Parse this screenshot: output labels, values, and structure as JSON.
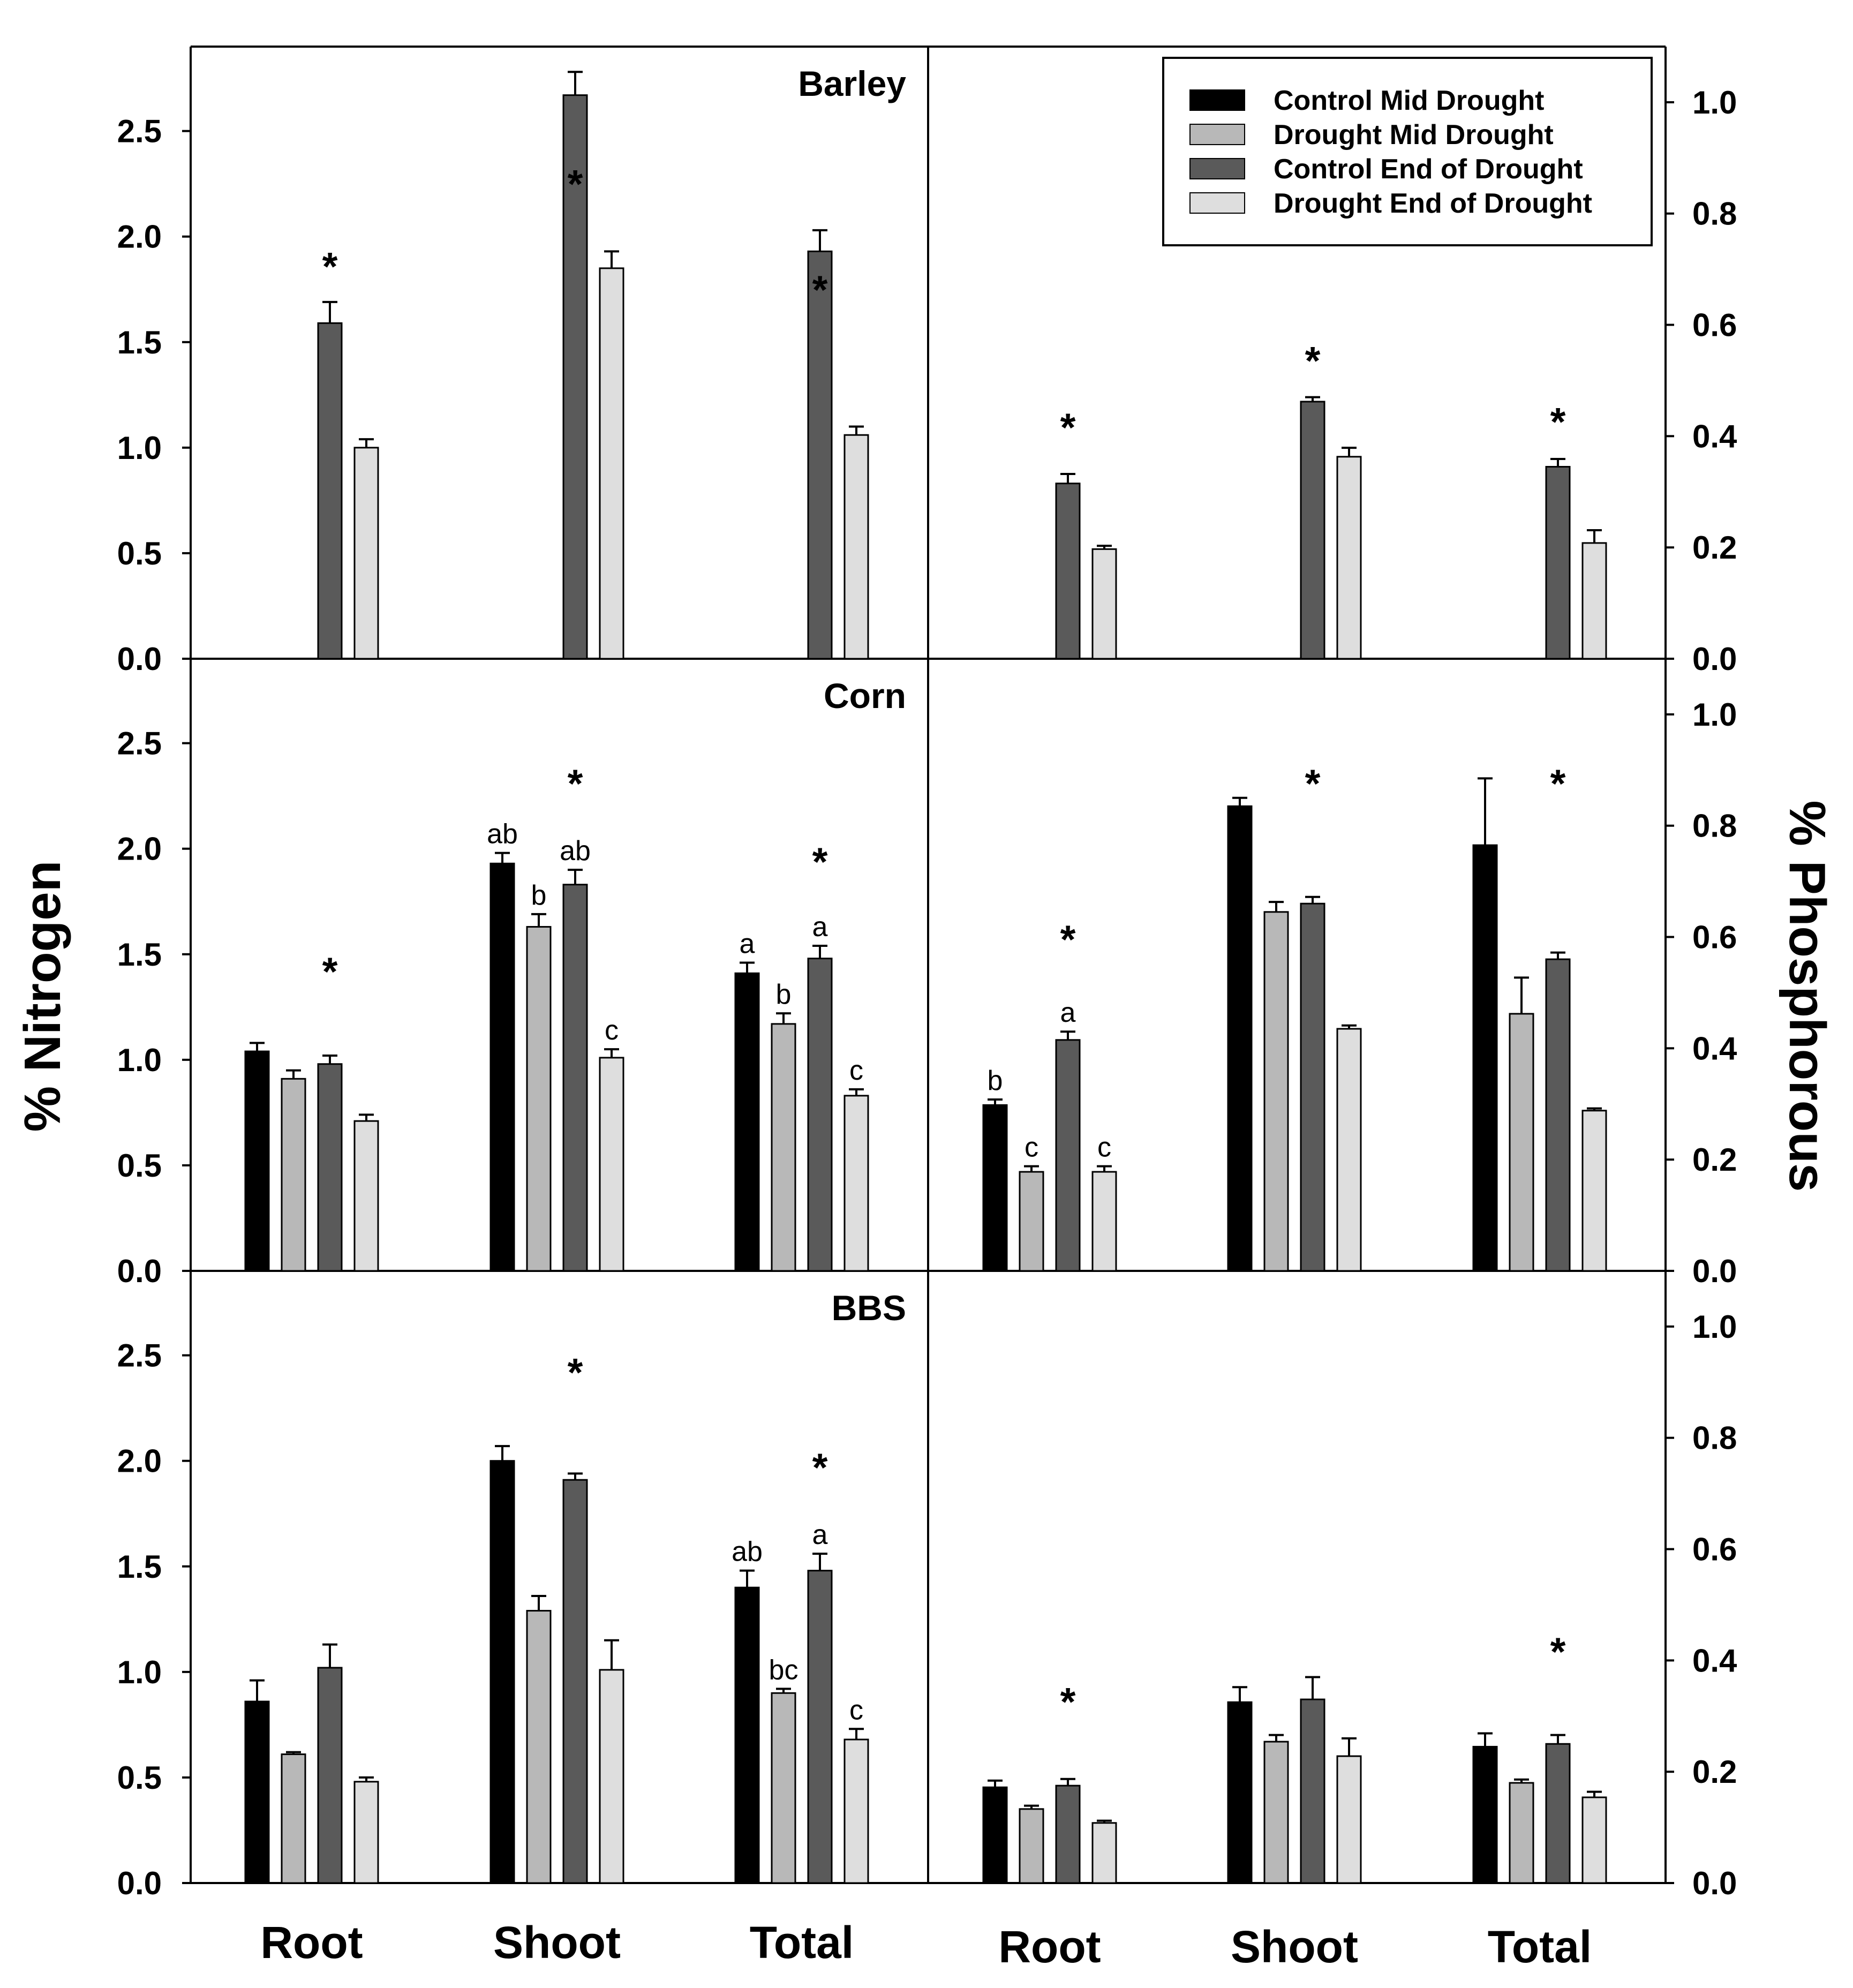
{
  "chart_data": {
    "type": "bar",
    "left_axis": {
      "label": "% Nitrogen",
      "ylim": [
        0,
        2.9
      ],
      "ticks": [
        "0.0",
        "0.5",
        "1.0",
        "1.5",
        "2.0",
        "2.5"
      ]
    },
    "right_axis": {
      "label": "% Phosphorous",
      "ylim": [
        0,
        1.1
      ],
      "ticks": [
        "0.0",
        "0.2",
        "0.4",
        "0.6",
        "0.8",
        "1.0"
      ]
    },
    "categories": [
      "Root",
      "Shoot",
      "Total"
    ],
    "legend": [
      {
        "name": "Control Mid Drought",
        "color": "#000000"
      },
      {
        "name": "Drought Mid Drought",
        "color": "#b8b8b8"
      },
      {
        "name": "Control End of Drought",
        "color": "#5a5a5a"
      },
      {
        "name": "Drought End of Drought",
        "color": "#dedede"
      }
    ],
    "rows": [
      {
        "title": "Barley",
        "nitrogen": {
          "values": [
            [
              null,
              null,
              1.59,
              1.0
            ],
            [
              null,
              null,
              2.67,
              1.85
            ],
            [
              null,
              null,
              1.93,
              1.06
            ]
          ],
          "errors": [
            [
              0,
              0,
              0.1,
              0.04
            ],
            [
              0,
              0,
              0.11,
              0.08
            ],
            [
              0,
              0,
              0.1,
              0.04
            ]
          ],
          "stars": [
            1.87,
            2.26,
            1.76
          ],
          "letters": [
            [
              "",
              "",
              "",
              ""
            ],
            [
              "",
              "",
              "",
              ""
            ],
            [
              "",
              "",
              "",
              ""
            ]
          ]
        },
        "phosphorus": {
          "values": [
            [
              null,
              null,
              0.315,
              0.197
            ],
            [
              null,
              null,
              0.462,
              0.363
            ],
            [
              null,
              null,
              0.345,
              0.208
            ]
          ],
          "errors": [
            [
              0,
              0,
              0.017,
              0.006
            ],
            [
              0,
              0,
              0.008,
              0.016
            ],
            [
              0,
              0,
              0.014,
              0.023
            ]
          ],
          "stars": [
            0.42,
            0.54,
            0.43
          ],
          "letters": [
            [
              "",
              "",
              "",
              ""
            ],
            [
              "",
              "",
              "",
              ""
            ],
            [
              "",
              "",
              "",
              ""
            ]
          ]
        }
      },
      {
        "title": "Corn",
        "nitrogen": {
          "values": [
            [
              1.04,
              0.91,
              0.98,
              0.71
            ],
            [
              1.93,
              1.63,
              1.83,
              1.01
            ],
            [
              1.41,
              1.17,
              1.48,
              0.83
            ]
          ],
          "errors": [
            [
              0.04,
              0.04,
              0.04,
              0.03
            ],
            [
              0.05,
              0.06,
              0.07,
              0.04
            ],
            [
              0.05,
              0.05,
              0.06,
              0.03
            ]
          ],
          "stars": [
            1.43,
            2.32,
            1.95
          ],
          "letters": [
            [
              "",
              "",
              "",
              ""
            ],
            [
              "ab",
              "b",
              "ab",
              "c"
            ],
            [
              "a",
              "b",
              "a",
              "c"
            ]
          ]
        },
        "phosphorus": {
          "values": [
            [
              0.298,
              0.178,
              0.415,
              0.178
            ],
            [
              0.835,
              0.645,
              0.66,
              0.435
            ],
            [
              0.765,
              0.462,
              0.56,
              0.288
            ]
          ],
          "errors": [
            [
              0.01,
              0.01,
              0.015,
              0.01
            ],
            [
              0.015,
              0.018,
              0.012,
              0.006
            ],
            [
              0.12,
              0.065,
              0.012,
              0.004
            ]
          ],
          "stars": [
            0.6,
            0.88,
            0.88
          ],
          "letters": [
            [
              "b",
              "c",
              "a",
              "c"
            ],
            [
              "",
              "",
              "",
              ""
            ],
            [
              "",
              "",
              "",
              ""
            ]
          ]
        }
      },
      {
        "title": "BBS",
        "nitrogen": {
          "values": [
            [
              0.86,
              0.61,
              1.02,
              0.48
            ],
            [
              2.0,
              1.29,
              1.91,
              1.01
            ],
            [
              1.4,
              0.9,
              1.48,
              0.68
            ]
          ],
          "errors": [
            [
              0.1,
              0.01,
              0.11,
              0.02
            ],
            [
              0.07,
              0.07,
              0.03,
              0.14
            ],
            [
              0.08,
              0.02,
              0.08,
              0.05
            ]
          ],
          "stars": [
            null,
            2.43,
            1.98
          ],
          "letters": [
            [
              "",
              "",
              "",
              ""
            ],
            [
              "",
              "",
              "",
              ""
            ],
            [
              "ab",
              "bc",
              "a",
              "c"
            ]
          ]
        },
        "phosphorus": {
          "values": [
            [
              0.172,
              0.133,
              0.175,
              0.108
            ],
            [
              0.325,
              0.254,
              0.33,
              0.228
            ],
            [
              0.245,
              0.18,
              0.25,
              0.154
            ]
          ],
          "errors": [
            [
              0.012,
              0.006,
              0.012,
              0.004
            ],
            [
              0.027,
              0.012,
              0.04,
              0.032
            ],
            [
              0.024,
              0.006,
              0.016,
              0.01
            ]
          ],
          "stars": [
            0.33,
            null,
            0.42
          ],
          "letters": [
            [
              "",
              "",
              "",
              ""
            ],
            [
              "",
              "",
              "",
              ""
            ],
            [
              "",
              "",
              "",
              ""
            ]
          ]
        }
      }
    ]
  }
}
